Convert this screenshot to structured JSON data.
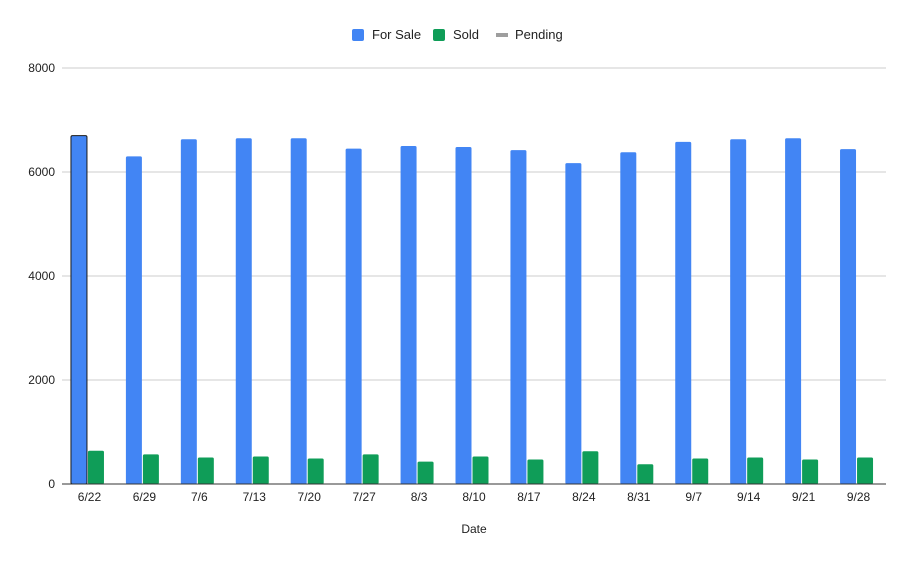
{
  "chart_data": {
    "type": "bar",
    "title": "",
    "xlabel": "Date",
    "ylabel": "",
    "ylim": [
      0,
      8000
    ],
    "yticks": [
      0,
      2000,
      4000,
      6000,
      8000
    ],
    "grid": true,
    "legend_position": "top",
    "categories": [
      "6/22",
      "6/29",
      "7/6",
      "7/13",
      "7/20",
      "7/27",
      "8/3",
      "8/10",
      "8/17",
      "8/24",
      "8/31",
      "9/7",
      "9/14",
      "9/21",
      "9/28"
    ],
    "series": [
      {
        "name": "For Sale",
        "color": "#4285f4",
        "values": [
          6700,
          6300,
          6630,
          6650,
          6650,
          6450,
          6500,
          6480,
          6420,
          6170,
          6380,
          6580,
          6630,
          6650,
          6440
        ]
      },
      {
        "name": "Sold",
        "color": "#0f9d58",
        "values": [
          640,
          570,
          510,
          530,
          490,
          570,
          430,
          530,
          470,
          630,
          380,
          490,
          510,
          470,
          510
        ]
      },
      {
        "name": "Pending",
        "color": "#9e9e9e",
        "values": [
          0,
          0,
          0,
          0,
          0,
          0,
          0,
          0,
          0,
          0,
          0,
          0,
          0,
          0,
          0
        ]
      }
    ]
  }
}
